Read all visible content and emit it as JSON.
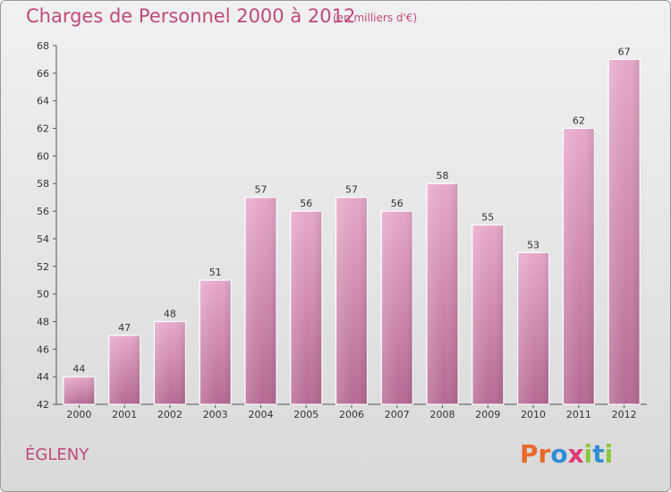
{
  "header": {
    "title": "Charges de Personnel 2000 à 2012",
    "unit_note": "(en milliers d'€)"
  },
  "footer": {
    "commune": "ÉGLENY",
    "brand_letters": [
      {
        "ch": "P",
        "color": "#e8692a"
      },
      {
        "ch": "r",
        "color": "#e8692a"
      },
      {
        "ch": "o",
        "color": "#2f8fd4"
      },
      {
        "ch": "x",
        "color": "#e03a7a"
      },
      {
        "ch": "i",
        "color": "#8cc63f"
      },
      {
        "ch": "t",
        "color": "#2f8fd4"
      },
      {
        "ch": "i",
        "color": "#8cc63f"
      }
    ]
  },
  "chart_data": {
    "type": "bar",
    "title": "Charges de Personnel 2000 à 2012",
    "subtitle": "(en milliers d'€)",
    "xlabel": "",
    "ylabel": "",
    "categories": [
      "2000",
      "2001",
      "2002",
      "2003",
      "2004",
      "2005",
      "2006",
      "2007",
      "2008",
      "2009",
      "2010",
      "2011",
      "2012"
    ],
    "values": [
      44,
      47,
      48,
      51,
      57,
      56,
      57,
      56,
      58,
      55,
      53,
      62,
      67
    ],
    "ylim": [
      42,
      68
    ],
    "yticks": [
      42,
      44,
      46,
      48,
      50,
      52,
      54,
      56,
      58,
      60,
      62,
      64,
      66,
      68
    ],
    "grid": false,
    "bar_color": "#d27aa9",
    "show_data_labels": true
  }
}
